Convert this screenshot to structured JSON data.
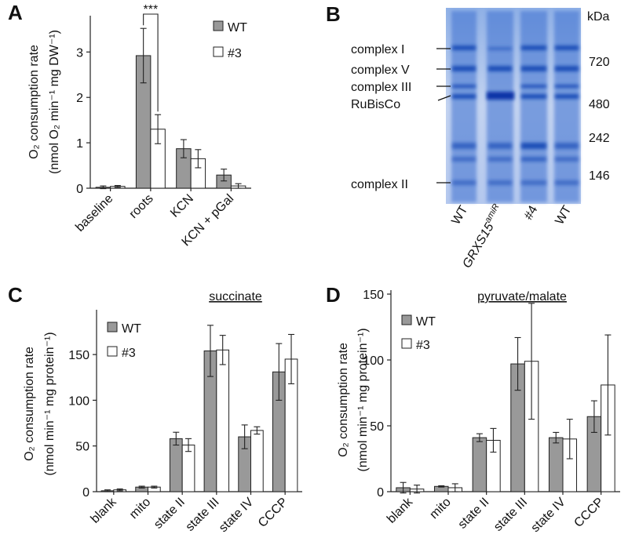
{
  "chart_data": [
    {
      "type": "bar",
      "panel_label": "A",
      "ylabel": [
        "O₂ consumption rate",
        "(nmol O₂ min⁻¹ mg DW⁻¹)"
      ],
      "categories": [
        "baseline",
        "roots",
        "KCN",
        "KCN + pGal"
      ],
      "series": [
        {
          "name": "WT",
          "color": "#999999",
          "values": [
            0.02,
            2.92,
            0.87,
            0.29
          ],
          "errors": [
            0.03,
            0.6,
            0.2,
            0.13
          ]
        },
        {
          "name": "#3",
          "color": "#ffffff",
          "values": [
            0.04,
            1.3,
            0.65,
            0.05
          ],
          "errors": [
            0.02,
            0.32,
            0.2,
            0.05
          ]
        }
      ],
      "ylim": [
        0,
        3.8
      ],
      "yticks": [
        0,
        1,
        2,
        3
      ],
      "legend": "upper right",
      "significance": {
        "text": "***",
        "category": "roots"
      }
    },
    {
      "type": "bar",
      "panel_label": "C",
      "title": "succinate",
      "ylabel": [
        "O₂ consumption rate",
        "(nmol min⁻¹ mg protein⁻¹)"
      ],
      "categories": [
        "blank",
        "mito",
        "state II",
        "state III",
        "state IV",
        "CCCP"
      ],
      "series": [
        {
          "name": "WT",
          "color": "#999999",
          "values": [
            1,
            5,
            58,
            154,
            60,
            131
          ],
          "errors": [
            1,
            1,
            7,
            28,
            13,
            31
          ]
        },
        {
          "name": "#3",
          "color": "#ffffff",
          "values": [
            2,
            5,
            51,
            155,
            67,
            145
          ],
          "errors": [
            1,
            1,
            7,
            16,
            4,
            27
          ]
        }
      ],
      "ylim": [
        0,
        199
      ],
      "yticks": [
        0,
        50,
        100,
        150
      ],
      "legend": "upper left"
    },
    {
      "type": "bar",
      "panel_label": "D",
      "title": "pyruvate/malate",
      "ylabel": [
        "O₂ consumption rate",
        "(nmol min⁻¹ mg protein⁻¹)"
      ],
      "categories": [
        "blank",
        "mito",
        "state II",
        "state III",
        "state IV",
        "CCCP"
      ],
      "series": [
        {
          "name": "WT",
          "color": "#999999",
          "values": [
            3,
            4,
            41,
            97,
            41,
            57
          ],
          "errors": [
            4,
            0.5,
            3,
            20,
            4,
            12
          ]
        },
        {
          "name": "#3",
          "color": "#ffffff",
          "values": [
            2,
            3,
            39,
            99,
            40,
            81
          ],
          "errors": [
            3,
            3,
            9,
            44,
            15,
            38
          ]
        }
      ],
      "ylim": [
        0,
        153
      ],
      "yticks": [
        0,
        50,
        100,
        150
      ],
      "legend": "upper left"
    }
  ],
  "gel": {
    "panel_label": "B",
    "bands": [
      "complex I",
      "complex V",
      "complex III",
      "RuBisCo",
      "complex II"
    ],
    "size_unit": "kDa",
    "size_markers": [
      "720",
      "480",
      "242",
      "146"
    ],
    "lanes": [
      "WT",
      {
        "text": "GRXS15",
        "sup": "amiR"
      },
      "#4",
      "WT"
    ]
  }
}
